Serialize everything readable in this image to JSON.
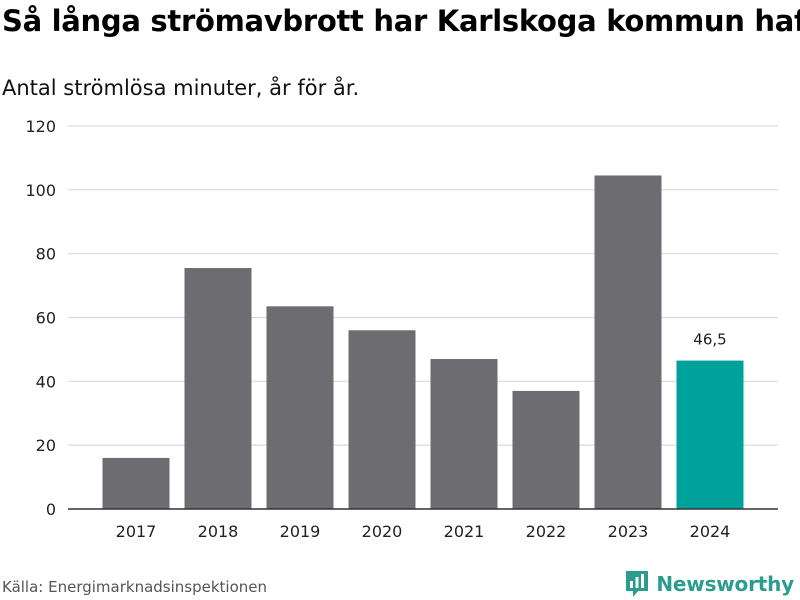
{
  "title": "Så långa strömavbrott har Karlskoga kommun haft",
  "subtitle": "Antal strömlösa minuter, år för år.",
  "source": "Källa: Energimarknadsinspektionen",
  "brand": {
    "name": "Newsworthy",
    "icon": "newsworthy-logo-icon",
    "color": "#2a9d8f"
  },
  "colors": {
    "bar": "#6d6d71",
    "highlight": "#00a19a",
    "grid": "#d9d9d9",
    "axis": "#333333"
  },
  "chart_data": {
    "type": "bar",
    "title": "Så långa strömavbrott har Karlskoga kommun haft",
    "subtitle": "Antal strömlösa minuter, år för år.",
    "xlabel": "",
    "ylabel": "",
    "categories": [
      "2017",
      "2018",
      "2019",
      "2020",
      "2021",
      "2022",
      "2023",
      "2024"
    ],
    "values": [
      16,
      75.5,
      63.5,
      56,
      47,
      37,
      104.5,
      46.5
    ],
    "highlight_index": 7,
    "data_labels": [
      {
        "index": 7,
        "text": "46,5"
      }
    ],
    "ylim": [
      0,
      120
    ],
    "yticks": [
      0,
      20,
      40,
      60,
      80,
      100,
      120
    ],
    "grid": true,
    "legend": "none"
  }
}
